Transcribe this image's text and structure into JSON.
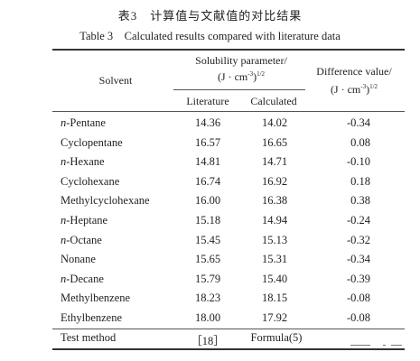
{
  "caption": {
    "chinese": "表3　计算值与文献值的对比结果",
    "english": "Table 3　Calculated results compared with literature data"
  },
  "header": {
    "solvent": "Solvent",
    "solubility_line1": "Solubility parameter/",
    "solubility_line2": "(J · cm",
    "solubility_exp": "-3",
    "solubility_close": ")",
    "solubility_pow": "1/2",
    "literature": "Literature",
    "calculated": "Calculated",
    "difference_line1": "Difference value/",
    "difference_line2": "(J · cm",
    "difference_exp": "-3",
    "difference_close": ")",
    "difference_pow": "1/2"
  },
  "rows": [
    {
      "solvent": "n-Pentane",
      "literature": "14.36",
      "calculated": "14.02",
      "difference": "-0.34"
    },
    {
      "solvent": "Cyclopentane",
      "literature": "16.57",
      "calculated": "16.65",
      "difference": "0.08"
    },
    {
      "solvent": "n-Hexane",
      "literature": "14.81",
      "calculated": "14.71",
      "difference": "-0.10"
    },
    {
      "solvent": "Cyclohexane",
      "literature": "16.74",
      "calculated": "16.92",
      "difference": "0.18"
    },
    {
      "solvent": "Methylcyclohexane",
      "literature": "16.00",
      "calculated": "16.38",
      "difference": "0.38"
    },
    {
      "solvent": "n-Heptane",
      "literature": "15.18",
      "calculated": "14.94",
      "difference": "-0.24"
    },
    {
      "solvent": "n-Octane",
      "literature": "15.45",
      "calculated": "15.13",
      "difference": "-0.32"
    },
    {
      "solvent": "Nonane",
      "literature": "15.65",
      "calculated": "15.31",
      "difference": "-0.34"
    },
    {
      "solvent": "n-Decane",
      "literature": "15.79",
      "calculated": "15.40",
      "difference": "-0.39"
    },
    {
      "solvent": "Methylbenzene",
      "literature": "18.23",
      "calculated": "18.15",
      "difference": "-0.08"
    },
    {
      "solvent": "Ethylbenzene",
      "literature": "18.00",
      "calculated": "17.92",
      "difference": "-0.08"
    }
  ],
  "footer_row": {
    "label": "Test method",
    "literature": "［18］",
    "calculated": "Formula(5)"
  }
}
